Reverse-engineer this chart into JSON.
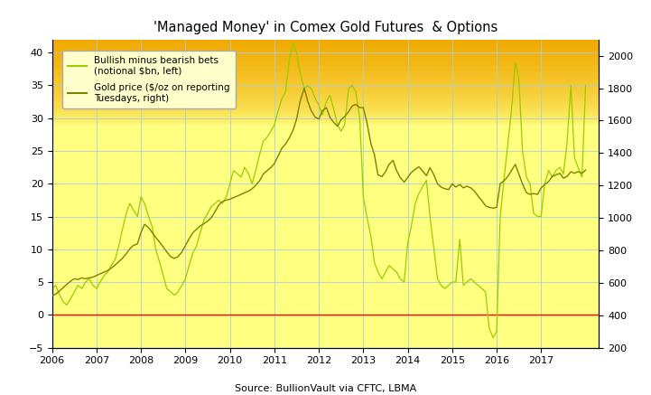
{
  "title": "'Managed Money' in Comex Gold Futures  & Options",
  "source": "Source: BullionVault via CFTC, LBMA",
  "ylim_left": [
    -5,
    42
  ],
  "ylim_right": [
    200,
    2100
  ],
  "yticks_left": [
    -5,
    0,
    5,
    10,
    15,
    20,
    25,
    30,
    35,
    40
  ],
  "yticks_right": [
    200,
    400,
    600,
    800,
    1000,
    1200,
    1400,
    1600,
    1800,
    2000
  ],
  "xlim": [
    2006.0,
    2018.3
  ],
  "xticks": [
    2006,
    2007,
    2008,
    2009,
    2010,
    2011,
    2012,
    2013,
    2014,
    2015,
    2016,
    2017
  ],
  "color_net": "#99cc00",
  "color_gold": "#808000",
  "color_zero": "#ff0000",
  "bg_orange": "#f0a800",
  "bg_yellow": "#ffff80",
  "legend_bg": "#ffffcc",
  "grid_color": "#aaccdd",
  "label_net": "Bullish minus bearish bets\n(notional $bn, left)",
  "label_gold": "Gold price ($/oz on reporting\nTuesdays, right)",
  "net_x": [
    2006.0,
    2006.08,
    2006.17,
    2006.25,
    2006.33,
    2006.42,
    2006.5,
    2006.58,
    2006.67,
    2006.75,
    2006.83,
    2006.92,
    2007.0,
    2007.08,
    2007.17,
    2007.25,
    2007.33,
    2007.42,
    2007.5,
    2007.58,
    2007.67,
    2007.75,
    2007.83,
    2007.92,
    2008.0,
    2008.08,
    2008.17,
    2008.25,
    2008.33,
    2008.42,
    2008.5,
    2008.58,
    2008.67,
    2008.75,
    2008.83,
    2008.92,
    2009.0,
    2009.08,
    2009.17,
    2009.25,
    2009.33,
    2009.42,
    2009.5,
    2009.58,
    2009.67,
    2009.75,
    2009.83,
    2009.92,
    2010.0,
    2010.08,
    2010.17,
    2010.25,
    2010.33,
    2010.42,
    2010.5,
    2010.58,
    2010.67,
    2010.75,
    2010.83,
    2010.92,
    2011.0,
    2011.08,
    2011.17,
    2011.25,
    2011.33,
    2011.42,
    2011.5,
    2011.58,
    2011.67,
    2011.75,
    2011.83,
    2011.92,
    2012.0,
    2012.08,
    2012.17,
    2012.25,
    2012.33,
    2012.42,
    2012.5,
    2012.58,
    2012.67,
    2012.75,
    2012.83,
    2012.92,
    2013.0,
    2013.08,
    2013.17,
    2013.25,
    2013.33,
    2013.42,
    2013.5,
    2013.58,
    2013.67,
    2013.75,
    2013.83,
    2013.92,
    2014.0,
    2014.08,
    2014.17,
    2014.25,
    2014.33,
    2014.42,
    2014.5,
    2014.58,
    2014.67,
    2014.75,
    2014.83,
    2014.92,
    2015.0,
    2015.08,
    2015.17,
    2015.25,
    2015.33,
    2015.42,
    2015.5,
    2015.58,
    2015.67,
    2015.75,
    2015.83,
    2015.92,
    2016.0,
    2016.08,
    2016.17,
    2016.25,
    2016.33,
    2016.42,
    2016.5,
    2016.58,
    2016.67,
    2016.75,
    2016.83,
    2016.92,
    2017.0,
    2017.08,
    2017.17,
    2017.25,
    2017.33,
    2017.42,
    2017.5,
    2017.58,
    2017.67,
    2017.75,
    2017.83,
    2017.92,
    2018.0
  ],
  "net_y": [
    4.0,
    4.5,
    3.0,
    2.0,
    1.5,
    2.5,
    3.5,
    4.5,
    4.0,
    5.0,
    5.5,
    4.5,
    4.0,
    5.0,
    6.0,
    6.5,
    7.5,
    8.5,
    10.5,
    13.0,
    15.5,
    17.0,
    16.0,
    15.0,
    18.0,
    17.0,
    15.0,
    13.5,
    10.0,
    8.0,
    6.0,
    4.0,
    3.5,
    3.0,
    3.5,
    4.5,
    5.5,
    7.5,
    9.5,
    10.5,
    12.5,
    14.5,
    15.5,
    16.5,
    17.0,
    17.5,
    17.0,
    18.0,
    20.0,
    22.0,
    21.5,
    21.0,
    22.5,
    21.5,
    20.0,
    22.0,
    24.5,
    26.5,
    27.0,
    28.0,
    29.0,
    31.0,
    33.0,
    34.0,
    38.5,
    41.5,
    40.0,
    37.0,
    34.5,
    35.0,
    34.5,
    33.0,
    32.0,
    30.5,
    32.5,
    33.5,
    31.5,
    29.0,
    28.0,
    29.0,
    34.5,
    35.0,
    34.0,
    30.0,
    18.0,
    15.0,
    12.0,
    8.0,
    6.5,
    5.5,
    6.5,
    7.5,
    7.0,
    6.5,
    5.5,
    5.0,
    11.0,
    13.5,
    17.0,
    18.5,
    19.5,
    20.5,
    15.0,
    10.5,
    5.5,
    4.5,
    4.0,
    4.5,
    5.0,
    5.0,
    11.5,
    4.5,
    5.0,
    5.5,
    5.0,
    4.5,
    4.0,
    3.5,
    -2.0,
    -3.5,
    -2.5,
    15.0,
    21.0,
    26.0,
    31.0,
    38.5,
    36.0,
    25.0,
    21.0,
    20.0,
    15.5,
    15.0,
    15.0,
    20.0,
    22.0,
    21.0,
    22.0,
    22.5,
    21.5,
    26.0,
    35.0,
    24.0,
    22.5,
    21.0,
    35.0
  ],
  "gold_x": [
    2006.0,
    2006.08,
    2006.17,
    2006.25,
    2006.33,
    2006.42,
    2006.5,
    2006.58,
    2006.67,
    2006.75,
    2006.83,
    2006.92,
    2007.0,
    2007.08,
    2007.17,
    2007.25,
    2007.33,
    2007.42,
    2007.5,
    2007.58,
    2007.67,
    2007.75,
    2007.83,
    2007.92,
    2008.0,
    2008.08,
    2008.17,
    2008.25,
    2008.33,
    2008.42,
    2008.5,
    2008.58,
    2008.67,
    2008.75,
    2008.83,
    2008.92,
    2009.0,
    2009.08,
    2009.17,
    2009.25,
    2009.33,
    2009.42,
    2009.5,
    2009.58,
    2009.67,
    2009.75,
    2009.83,
    2009.92,
    2010.0,
    2010.08,
    2010.17,
    2010.25,
    2010.33,
    2010.42,
    2010.5,
    2010.58,
    2010.67,
    2010.75,
    2010.83,
    2010.92,
    2011.0,
    2011.08,
    2011.17,
    2011.25,
    2011.33,
    2011.42,
    2011.5,
    2011.58,
    2011.67,
    2011.75,
    2011.83,
    2011.92,
    2012.0,
    2012.08,
    2012.17,
    2012.25,
    2012.33,
    2012.42,
    2012.5,
    2012.58,
    2012.67,
    2012.75,
    2012.83,
    2012.92,
    2013.0,
    2013.08,
    2013.17,
    2013.25,
    2013.33,
    2013.42,
    2013.5,
    2013.58,
    2013.67,
    2013.75,
    2013.83,
    2013.92,
    2014.0,
    2014.08,
    2014.17,
    2014.25,
    2014.33,
    2014.42,
    2014.5,
    2014.58,
    2014.67,
    2014.75,
    2014.83,
    2014.92,
    2015.0,
    2015.08,
    2015.17,
    2015.25,
    2015.33,
    2015.42,
    2015.5,
    2015.58,
    2015.67,
    2015.75,
    2015.83,
    2015.92,
    2016.0,
    2016.08,
    2016.17,
    2016.25,
    2016.33,
    2016.42,
    2016.5,
    2016.58,
    2016.67,
    2016.75,
    2016.83,
    2016.92,
    2017.0,
    2017.08,
    2017.17,
    2017.25,
    2017.33,
    2017.42,
    2017.5,
    2017.58,
    2017.67,
    2017.75,
    2017.83,
    2017.92,
    2018.0
  ],
  "gold_y": [
    520,
    530,
    550,
    570,
    590,
    610,
    625,
    620,
    630,
    625,
    630,
    635,
    645,
    655,
    665,
    675,
    690,
    710,
    730,
    750,
    780,
    810,
    830,
    840,
    910,
    960,
    940,
    910,
    880,
    850,
    820,
    790,
    760,
    750,
    760,
    790,
    830,
    870,
    910,
    930,
    950,
    965,
    980,
    1000,
    1040,
    1080,
    1100,
    1110,
    1115,
    1125,
    1135,
    1145,
    1155,
    1165,
    1180,
    1200,
    1230,
    1270,
    1290,
    1310,
    1335,
    1380,
    1430,
    1455,
    1490,
    1540,
    1610,
    1720,
    1800,
    1720,
    1660,
    1620,
    1610,
    1660,
    1680,
    1620,
    1590,
    1565,
    1605,
    1625,
    1655,
    1690,
    1700,
    1680,
    1680,
    1590,
    1460,
    1390,
    1265,
    1255,
    1285,
    1330,
    1355,
    1290,
    1250,
    1220,
    1250,
    1280,
    1300,
    1315,
    1290,
    1260,
    1310,
    1270,
    1210,
    1190,
    1180,
    1175,
    1210,
    1190,
    1205,
    1185,
    1195,
    1185,
    1165,
    1135,
    1105,
    1075,
    1065,
    1060,
    1065,
    1210,
    1230,
    1255,
    1290,
    1330,
    1270,
    1210,
    1155,
    1145,
    1150,
    1145,
    1185,
    1205,
    1225,
    1255,
    1265,
    1275,
    1245,
    1255,
    1285,
    1275,
    1285,
    1275,
    1295
  ]
}
